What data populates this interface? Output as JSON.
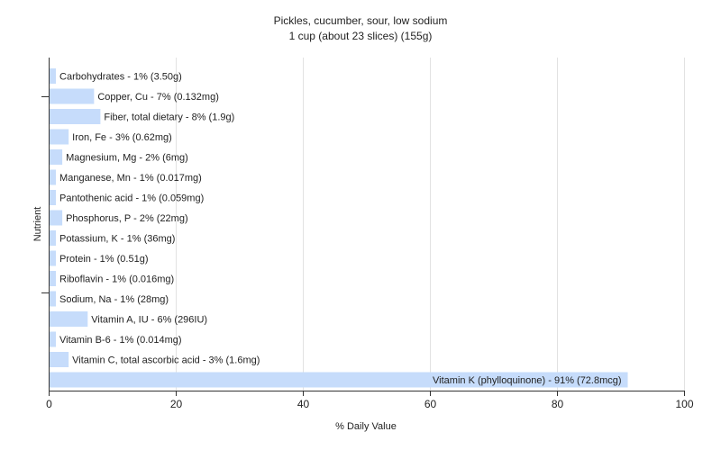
{
  "chart_data": {
    "type": "bar",
    "orientation": "horizontal",
    "title": "Pickles, cucumber, sour, low sodium",
    "subtitle": "1 cup (about 23 slices) (155g)",
    "xlabel": "% Daily Value",
    "ylabel": "Nutrient",
    "xlim": [
      0,
      100
    ],
    "xticks": [
      "0",
      "20",
      "40",
      "60",
      "80",
      "100"
    ],
    "grid": true,
    "bar_color": "#c6dcfb",
    "categories": [
      "Carbohydrates",
      "Copper, Cu",
      "Fiber, total dietary",
      "Iron, Fe",
      "Magnesium, Mg",
      "Manganese, Mn",
      "Pantothenic acid",
      "Phosphorus, P",
      "Potassium, K",
      "Protein",
      "Riboflavin",
      "Sodium, Na",
      "Vitamin A, IU",
      "Vitamin B-6",
      "Vitamin C, total ascorbic acid",
      "Vitamin K (phylloquinone)"
    ],
    "values": [
      1,
      7,
      8,
      3,
      2,
      1,
      1,
      2,
      1,
      1,
      1,
      1,
      6,
      1,
      3,
      91
    ],
    "labels": [
      "Carbohydrates - 1% (3.50g)",
      "Copper, Cu - 7% (0.132mg)",
      "Fiber, total dietary - 8% (1.9g)",
      "Iron, Fe - 3% (0.62mg)",
      "Magnesium, Mg - 2% (6mg)",
      "Manganese, Mn - 1% (0.017mg)",
      "Pantothenic acid - 1% (0.059mg)",
      "Phosphorus, P - 2% (22mg)",
      "Potassium, K - 1% (36mg)",
      "Protein - 1% (0.51g)",
      "Riboflavin - 1% (0.016mg)",
      "Sodium, Na - 1% (28mg)",
      "Vitamin A, IU - 6% (296IU)",
      "Vitamin B-6 - 1% (0.014mg)",
      "Vitamin C, total ascorbic acid - 3% (1.6mg)",
      "Vitamin K (phylloquinone) - 91% (72.8mcg)"
    ]
  }
}
